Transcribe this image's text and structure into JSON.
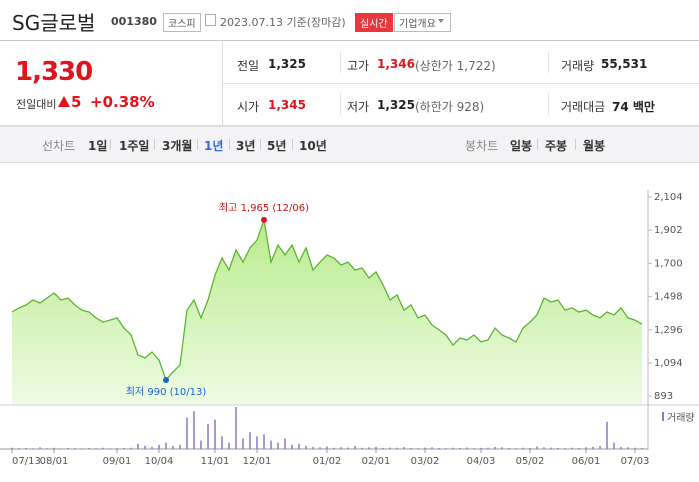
{
  "header": {
    "name": "SG글로벌",
    "code": "001380",
    "market": "코스피",
    "date": "2023.07.13 기준(장마감)",
    "realtime": "실시간",
    "company_info": "기업개요"
  },
  "quote": {
    "price": "1,330",
    "change_label": "전일대비",
    "change": "5",
    "change_pct": "+0.38%",
    "stats": [
      {
        "label": "전일",
        "value": "1,325"
      },
      {
        "label": "고가",
        "value": "1,346",
        "extra": "(상한가 1,722)"
      },
      {
        "label": "거래량",
        "value": "55,531"
      },
      {
        "label": "시가",
        "value": "1,345"
      },
      {
        "label": "저가",
        "value": "1,325",
        "extra": "(하한가 928)"
      },
      {
        "label": "거래대금",
        "value": "74 백만"
      }
    ]
  },
  "tabs": {
    "line_label": "선차트",
    "line_periods": [
      "1일",
      "1주일",
      "3개월",
      "1년",
      "3년",
      "5년",
      "10년"
    ],
    "candle_label": "봉차트",
    "candle_periods": [
      "일봉",
      "주봉",
      "월봉"
    ]
  },
  "chart_data": {
    "type": "area",
    "color": "#5cb531",
    "categories": [
      "07/13",
      null,
      null,
      null,
      null,
      null,
      "08/01",
      null,
      null,
      null,
      null,
      null,
      null,
      null,
      null,
      "09/01",
      null,
      null,
      null,
      null,
      null,
      "10/04",
      null,
      null,
      null,
      null,
      null,
      null,
      null,
      "11/01",
      null,
      null,
      null,
      null,
      null,
      "12/01",
      null,
      null,
      null,
      null,
      null,
      null,
      null,
      null,
      null,
      "01/02",
      null,
      null,
      null,
      null,
      null,
      null,
      "02/01",
      null,
      null,
      null,
      null,
      null,
      null,
      "03/02",
      null,
      null,
      null,
      null,
      null,
      null,
      null,
      "04/03",
      null,
      null,
      null,
      null,
      null,
      null,
      "05/02",
      null,
      null,
      null,
      null,
      null,
      null,
      null,
      "06/01",
      null,
      null,
      null,
      null,
      null,
      null,
      "07/03",
      null
    ],
    "values": [
      1404,
      1429,
      1447,
      1477,
      1459,
      1489,
      1520,
      1477,
      1489,
      1447,
      1416,
      1404,
      1368,
      1343,
      1355,
      1368,
      1307,
      1264,
      1143,
      1124,
      1161,
      1112,
      990,
      1039,
      1082,
      1416,
      1477,
      1368,
      1477,
      1629,
      1733,
      1660,
      1782,
      1708,
      1794,
      1842,
      1965,
      1708,
      1812,
      1751,
      1812,
      1708,
      1794,
      1660,
      1708,
      1751,
      1733,
      1690,
      1708,
      1660,
      1672,
      1611,
      1648,
      1569,
      1477,
      1508,
      1416,
      1447,
      1368,
      1386,
      1325,
      1295,
      1264,
      1203,
      1246,
      1234,
      1264,
      1222,
      1234,
      1307,
      1264,
      1246,
      1222,
      1307,
      1343,
      1386,
      1489,
      1465,
      1477,
      1416,
      1429,
      1404,
      1416,
      1386,
      1368,
      1404,
      1386,
      1429,
      1368,
      1355,
      1330
    ],
    "ylim": [
      893,
      2104
    ],
    "yticks": [
      {
        "value": 2104,
        "label": "2,104"
      },
      {
        "value": 1902,
        "label": "1,902"
      },
      {
        "value": 1700,
        "label": "1,700"
      },
      {
        "value": 1498,
        "label": "1,498"
      },
      {
        "value": 1296,
        "label": "1,296"
      },
      {
        "value": 1094,
        "label": "1,094"
      },
      893
    ],
    "max_label": "최고 1,965 (12/06)",
    "min_label": "최저 990 (10/13)",
    "volume": {
      "name": "거래량",
      "color": "#8a78c0",
      "values": [
        60000,
        40000,
        50000,
        30000,
        80000,
        40000,
        60000,
        30000,
        50000,
        40000,
        30000,
        50000,
        40000,
        60000,
        30000,
        40000,
        50000,
        60000,
        250000,
        150000,
        100000,
        200000,
        300000,
        150000,
        200000,
        1500000,
        1800000,
        400000,
        1200000,
        1400000,
        600000,
        300000,
        2000000,
        500000,
        800000,
        600000,
        700000,
        400000,
        300000,
        500000,
        200000,
        250000,
        150000,
        100000,
        80000,
        120000,
        60000,
        90000,
        70000,
        150000,
        60000,
        80000,
        100000,
        50000,
        70000,
        60000,
        90000,
        50000,
        40000,
        60000,
        80000,
        50000,
        40000,
        60000,
        50000,
        70000,
        40000,
        50000,
        60000,
        100000,
        80000,
        50000,
        40000,
        60000,
        50000,
        120000,
        80000,
        60000,
        50000,
        40000,
        60000,
        50000,
        80000,
        100000,
        150000,
        1300000,
        300000,
        100000,
        80000,
        60000,
        50000
      ]
    }
  }
}
